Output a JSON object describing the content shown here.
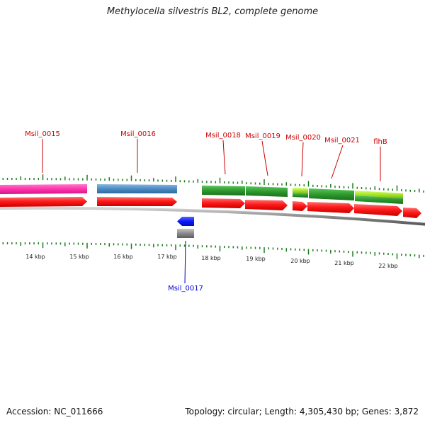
{
  "title": "Methylocella silvestris BL2, complete genome",
  "footer": {
    "accession": "Accession: NC_011666",
    "summary": "Topology: circular; Length: 4,305,430 bp; Genes: 3,872"
  },
  "colors": {
    "backbone": "#8c8c8c",
    "cds": "#ff1a1a",
    "tick": "#1f7a1f",
    "label_forward": "#cc0000",
    "label_reverse": "#0000cc"
  },
  "scale": {
    "unit": "kbp",
    "labels": [
      "14 kbp",
      "15 kbp",
      "16 kbp",
      "17 kbp",
      "18 kbp",
      "19 kbp",
      "20 kbp",
      "21 kbp",
      "22 kbp"
    ]
  },
  "genes": [
    {
      "name": "Msil_0015",
      "strand": "+",
      "type": "pink"
    },
    {
      "name": "Msil_0016",
      "strand": "+",
      "type": "steelblue"
    },
    {
      "name": "Msil_0017",
      "strand": "-",
      "type": "blue"
    },
    {
      "name": "Msil_0018",
      "strand": "+",
      "type": "green"
    },
    {
      "name": "Msil_0019",
      "strand": "+",
      "type": "green"
    },
    {
      "name": "Msil_0020",
      "strand": "+",
      "type": "lime"
    },
    {
      "name": "Msil_0021",
      "strand": "+",
      "type": "green"
    },
    {
      "name": "flhB",
      "strand": "+",
      "type": "lime"
    }
  ],
  "feature_colors": {
    "pink": "#ff33aa",
    "steelblue": "#4a8cc4",
    "blue": "#0a1aff",
    "green": "#2d9a2d",
    "lime": "#a8e62a",
    "gray": "#888888"
  }
}
